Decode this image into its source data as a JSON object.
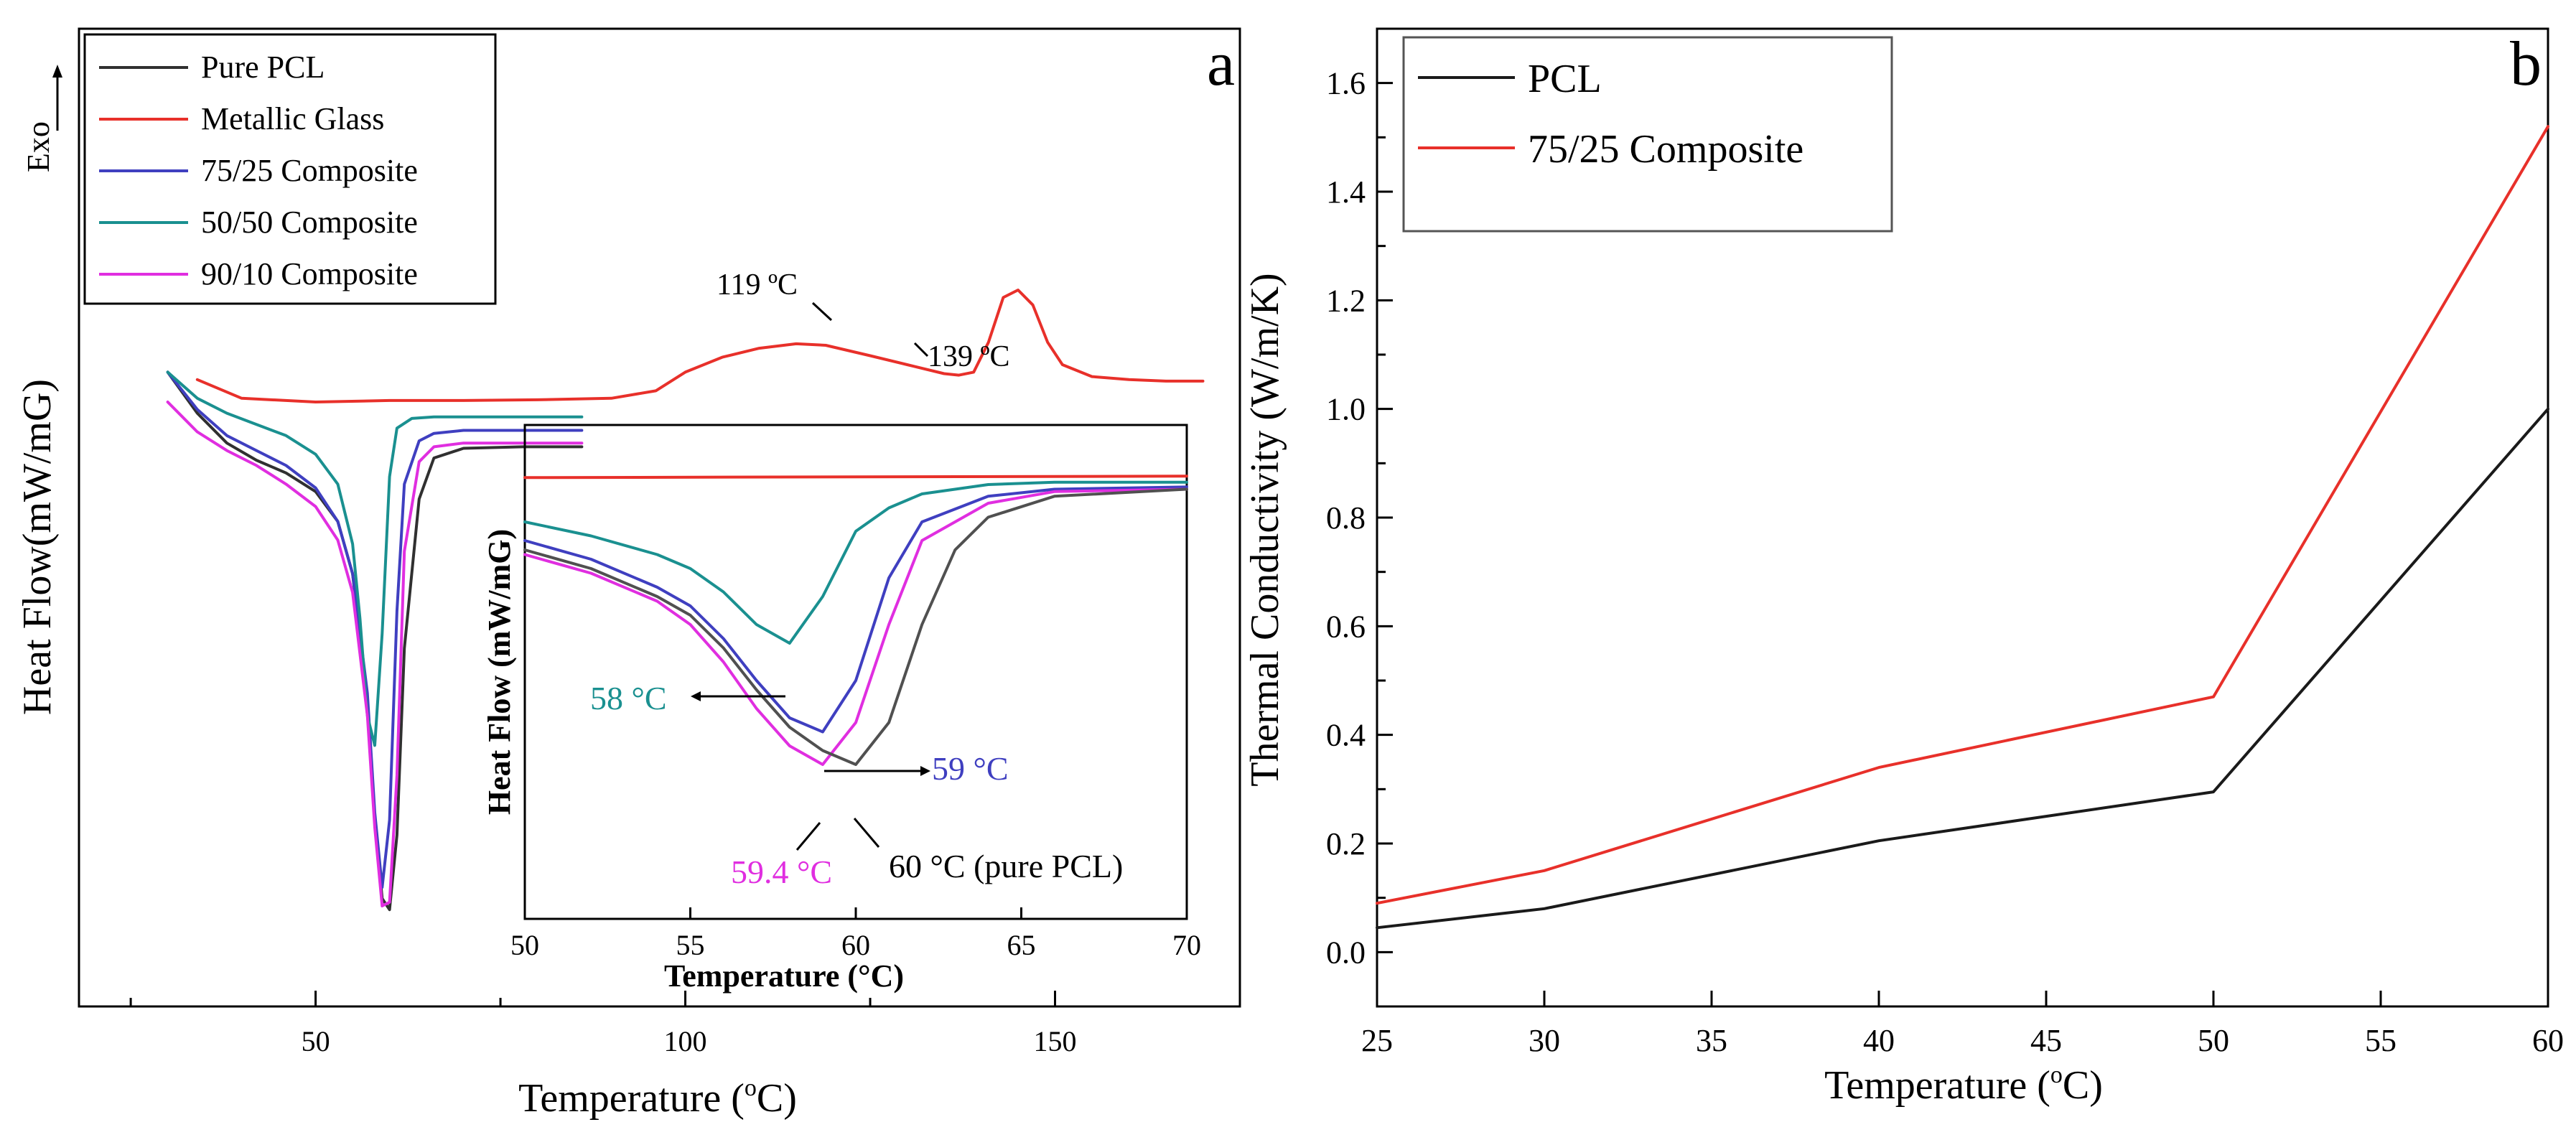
{
  "chart_data": [
    {
      "panel": "a",
      "type": "line",
      "title": "",
      "panel_label": "a",
      "xlabel": "Temperature",
      "xlabel_unit": "C",
      "xlabel_degree": "o",
      "ylabel": "Heat Flow(mW/mG)",
      "exo_label": "Exo",
      "xlim": [
        18,
        175
      ],
      "ylim": [
        0,
        1
      ],
      "xticks": [
        50,
        100,
        150
      ],
      "legend": [
        "Pure PCL",
        "Metallic Glass",
        "75/25 Composite",
        "50/50  Composite",
        "90/10 Composite"
      ],
      "legend_position": "top-left",
      "series": [
        {
          "name": "Pure PCL",
          "color": "#303030",
          "x": [
            30,
            34,
            38,
            42,
            46,
            50,
            53,
            55,
            57,
            58,
            59,
            60,
            61,
            62,
            64,
            66,
            70,
            78,
            86
          ],
          "y": [
            0.79,
            0.735,
            0.695,
            0.672,
            0.655,
            0.63,
            0.59,
            0.52,
            0.35,
            0.19,
            0.085,
            0.07,
            0.17,
            0.42,
            0.62,
            0.675,
            0.688,
            0.69,
            0.69
          ]
        },
        {
          "name": "Metallic Glass",
          "color": "#e8302a",
          "x": [
            34,
            40,
            50,
            60,
            70,
            80,
            90,
            96,
            100,
            105,
            110,
            115,
            119,
            125,
            130,
            135,
            137,
            139,
            141,
            143,
            145,
            147,
            149,
            151,
            155,
            160,
            165,
            170
          ],
          "y": [
            0.78,
            0.755,
            0.75,
            0.752,
            0.752,
            0.753,
            0.755,
            0.765,
            0.79,
            0.81,
            0.822,
            0.828,
            0.826,
            0.812,
            0.8,
            0.788,
            0.786,
            0.79,
            0.83,
            0.89,
            0.9,
            0.88,
            0.83,
            0.8,
            0.784,
            0.78,
            0.778,
            0.778
          ]
        },
        {
          "name": "75/25 Composite",
          "color": "#3f3fc0",
          "x": [
            30,
            34,
            38,
            42,
            46,
            50,
            53,
            55,
            57,
            58,
            59,
            60,
            61,
            62,
            64,
            66,
            70,
            78,
            86
          ],
          "y": [
            0.79,
            0.74,
            0.705,
            0.685,
            0.665,
            0.635,
            0.59,
            0.52,
            0.36,
            0.2,
            0.1,
            0.19,
            0.47,
            0.64,
            0.698,
            0.708,
            0.712,
            0.712,
            0.712
          ]
        },
        {
          "name": "50/50  Composite",
          "color": "#1a9090",
          "x": [
            30,
            34,
            38,
            42,
            46,
            50,
            53,
            55,
            56,
            57,
            58,
            59,
            60,
            61,
            63,
            66,
            70,
            78,
            86
          ],
          "y": [
            0.79,
            0.755,
            0.735,
            0.72,
            0.705,
            0.68,
            0.64,
            0.56,
            0.46,
            0.33,
            0.29,
            0.44,
            0.65,
            0.715,
            0.728,
            0.73,
            0.73,
            0.73,
            0.73
          ]
        },
        {
          "name": "90/10 Composite",
          "color": "#e02ee0",
          "x": [
            30,
            34,
            38,
            42,
            46,
            50,
            53,
            55,
            57,
            58,
            59,
            60,
            61,
            62,
            64,
            66,
            70,
            78,
            86
          ],
          "y": [
            0.75,
            0.71,
            0.685,
            0.665,
            0.64,
            0.61,
            0.565,
            0.495,
            0.33,
            0.18,
            0.075,
            0.08,
            0.25,
            0.55,
            0.67,
            0.69,
            0.695,
            0.695,
            0.695
          ]
        }
      ],
      "annotations": [
        {
          "text": "119 ºC",
          "x": 119,
          "y": 0.826
        },
        {
          "text": "139 ºC",
          "x": 139,
          "y": 0.786
        }
      ],
      "inset": {
        "type": "line",
        "xlabel": "Temperature (°C)",
        "ylabel": "Heat Flow (mW/mG)",
        "xlim": [
          50,
          70
        ],
        "ylim": [
          0,
          1
        ],
        "xticks": [
          50,
          55,
          60,
          65,
          70
        ],
        "series": [
          {
            "name": "Metallic Glass",
            "color": "#e8302a",
            "x": [
              50,
              70
            ],
            "y": [
              0.915,
              0.918
            ]
          },
          {
            "name": "50/50  Composite",
            "color": "#1a9090",
            "x": [
              50,
              52,
              54,
              55,
              56,
              57,
              58,
              59,
              60,
              61,
              62,
              64,
              66,
              70
            ],
            "y": [
              0.82,
              0.79,
              0.75,
              0.72,
              0.67,
              0.6,
              0.56,
              0.66,
              0.8,
              0.85,
              0.88,
              0.9,
              0.905,
              0.905
            ]
          },
          {
            "name": "75/25 Composite",
            "color": "#3f3fc0",
            "x": [
              50,
              52,
              54,
              55,
              56,
              57,
              58,
              59,
              60,
              61,
              62,
              64,
              66,
              70
            ],
            "y": [
              0.78,
              0.74,
              0.68,
              0.64,
              0.57,
              0.48,
              0.4,
              0.37,
              0.48,
              0.7,
              0.82,
              0.875,
              0.89,
              0.895
            ]
          },
          {
            "name": "90/10 Composite",
            "color": "#e02ee0",
            "x": [
              50,
              52,
              54,
              55,
              56,
              57,
              58,
              59,
              60,
              61,
              62,
              64,
              66,
              70
            ],
            "y": [
              0.75,
              0.71,
              0.65,
              0.6,
              0.52,
              0.42,
              0.34,
              0.3,
              0.39,
              0.6,
              0.78,
              0.86,
              0.885,
              0.89
            ]
          },
          {
            "name": "Pure PCL",
            "color": "#505050",
            "x": [
              50,
              52,
              54,
              55,
              56,
              57,
              58,
              59,
              60,
              61,
              62,
              63,
              64,
              66,
              70
            ],
            "y": [
              0.76,
              0.72,
              0.66,
              0.62,
              0.55,
              0.46,
              0.38,
              0.33,
              0.3,
              0.39,
              0.6,
              0.76,
              0.83,
              0.875,
              0.89
            ]
          }
        ],
        "annotations": [
          {
            "text": "58 °C",
            "color": "#1a9090",
            "x": 58,
            "y": 0.56
          },
          {
            "text": "59 °C",
            "color": "#3f3fc0",
            "x": 59,
            "y": 0.37
          },
          {
            "text": "59.4 °C",
            "color": "#e02ee0",
            "x": 59.4,
            "y": 0.3
          },
          {
            "text": "60 °C (pure PCL)",
            "color": "#000000",
            "x": 60,
            "y": 0.3
          }
        ]
      }
    },
    {
      "panel": "b",
      "type": "line",
      "title": "",
      "panel_label": "b",
      "xlabel": "Temperature",
      "xlabel_unit": "C",
      "xlabel_degree": "o",
      "ylabel": "Thermal Conductivity (W/m/K)",
      "xlim": [
        25,
        60
      ],
      "ylim": [
        -0.1,
        1.7
      ],
      "xticks": [
        25,
        30,
        35,
        40,
        45,
        50,
        55,
        60
      ],
      "yticks": [
        "0.0",
        "0.2",
        "0.4",
        "0.6",
        "0.8",
        "1.0",
        "1.2",
        "1.4",
        "1.6"
      ],
      "legend": [
        "PCL",
        "75/25 Composite"
      ],
      "legend_position": "top-left",
      "series": [
        {
          "name": "PCL",
          "color": "#1a1a1a",
          "x": [
            25,
            30,
            40,
            50,
            60
          ],
          "y": [
            0.045,
            0.08,
            0.205,
            0.295,
            1.0
          ]
        },
        {
          "name": "75/25 Composite",
          "color": "#e8302a",
          "x": [
            25,
            30,
            40,
            50,
            60
          ],
          "y": [
            0.09,
            0.15,
            0.34,
            0.47,
            1.52
          ]
        }
      ]
    }
  ]
}
